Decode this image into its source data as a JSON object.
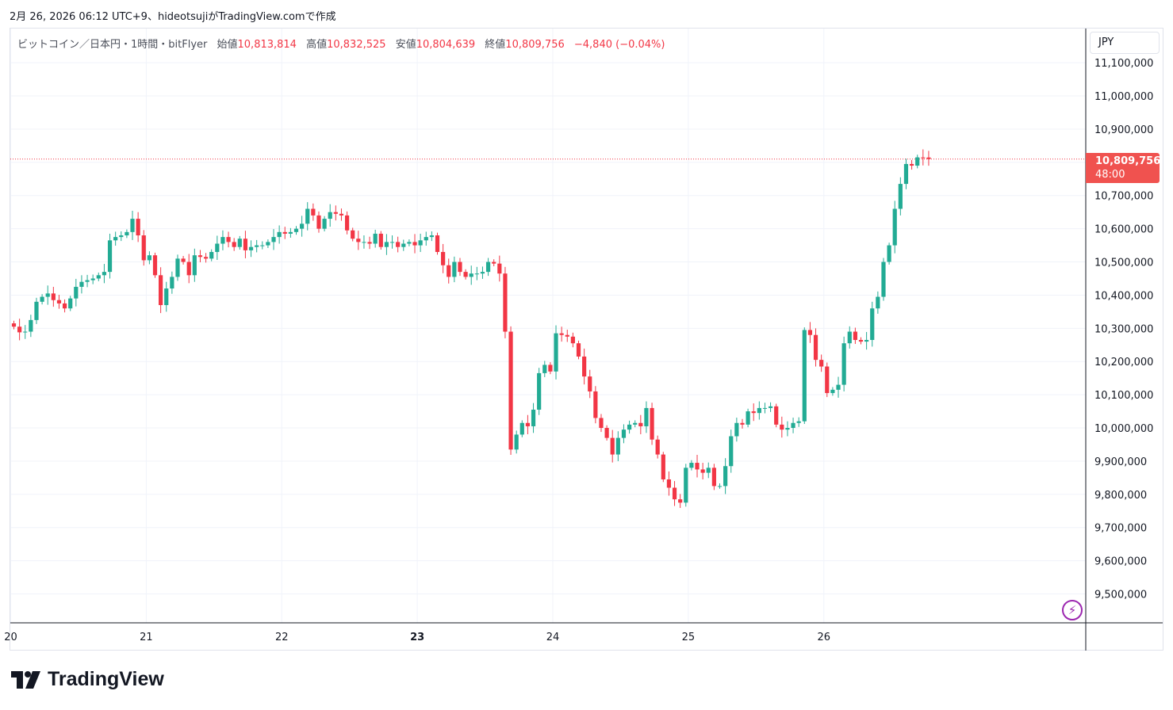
{
  "header": {
    "text": "2月 26, 2026 06:12 UTC+9、hideotsujiがTradingView.comで作成"
  },
  "legend": {
    "symbol": "ビットコイン／日本円・1時間・bitFlyer",
    "open_label": "始値",
    "open": "10,813,814",
    "high_label": "高値",
    "high": "10,832,525",
    "low_label": "安値",
    "low": "10,804,639",
    "close_label": "終値",
    "close": "10,809,756",
    "change": "−4,840 (−0.04%)"
  },
  "currency_button": "JPY",
  "last_price": {
    "value": "10,809,756",
    "countdown": "48:00",
    "raw": 10809756
  },
  "brand": {
    "name": "TradingView"
  },
  "colors": {
    "up": "#22ab94",
    "down": "#f23645",
    "grid": "#f0f3fa",
    "tag": "#f0524f"
  },
  "icons": {
    "logo": "tradingview-logo-icon",
    "bolt": "lightning-icon"
  },
  "chart_data": {
    "type": "candlestick",
    "interval": "1時間",
    "y_ticks": [
      9500000,
      9600000,
      9700000,
      9800000,
      9900000,
      10000000,
      10100000,
      10200000,
      10300000,
      10400000,
      10500000,
      10600000,
      10700000,
      10800000,
      10900000,
      11000000,
      11100000
    ],
    "y_tick_labels": [
      "9,500,000",
      "9,600,000",
      "9,700,000",
      "9,800,000",
      "9,900,000",
      "10,000,000",
      "10,100,000",
      "10,200,000",
      "10,300,000",
      "10,400,000",
      "10,500,000",
      "10,600,000",
      "10,700,000",
      "10,800,000",
      "10,900,000",
      "11,000,000",
      "11,100,000"
    ],
    "y_label_hidden": "10,800,000",
    "ylim": [
      9413000,
      11123000
    ],
    "x_ticks": [
      "20",
      "21",
      "22",
      "23",
      "24",
      "25",
      "26"
    ],
    "bold_x_tick": "23",
    "grid": true,
    "closes": [
      10305000,
      10288000,
      10290000,
      10325000,
      10380000,
      10395000,
      10405000,
      10385000,
      10375000,
      10360000,
      10390000,
      10425000,
      10440000,
      10445000,
      10450000,
      10460000,
      10470000,
      10565000,
      10575000,
      10580000,
      10590000,
      10630000,
      10580000,
      10505000,
      10520000,
      10460000,
      10370000,
      10420000,
      10455000,
      10510000,
      10500000,
      10460000,
      10520000,
      10515000,
      10510000,
      10530000,
      10555000,
      10575000,
      10560000,
      10545000,
      10570000,
      10535000,
      10545000,
      10550000,
      10550000,
      10560000,
      10575000,
      10590000,
      10585000,
      10590000,
      10600000,
      10615000,
      10660000,
      10640000,
      10600000,
      10630000,
      10650000,
      10645000,
      10640000,
      10595000,
      10570000,
      10560000,
      10560000,
      10555000,
      10585000,
      10545000,
      10560000,
      10560000,
      10545000,
      10555000,
      10560000,
      10550000,
      10565000,
      10575000,
      10580000,
      10530000,
      10490000,
      10455000,
      10500000,
      10470000,
      10455000,
      10465000,
      10465000,
      10470000,
      10500000,
      10495000,
      10465000,
      10290000,
      9935000,
      9980000,
      10015000,
      10005000,
      10055000,
      10165000,
      10190000,
      10170000,
      10285000,
      10280000,
      10275000,
      10255000,
      10215000,
      10155000,
      10110000,
      10030000,
      10000000,
      9970000,
      9920000,
      9970000,
      9995000,
      10010000,
      10015000,
      10005000,
      10060000,
      9965000,
      9920000,
      9845000,
      9820000,
      9785000,
      9775000,
      9880000,
      9895000,
      9875000,
      9865000,
      9880000,
      9825000,
      9825000,
      9885000,
      9975000,
      10015000,
      10010000,
      10050000,
      10045000,
      10060000,
      10060000,
      10065000,
      10010000,
      9995000,
      10000000,
      10015000,
      10020000,
      10295000,
      10280000,
      10205000,
      10185000,
      10105000,
      10115000,
      10130000,
      10255000,
      10290000,
      10265000,
      10260000,
      10265000,
      10360000,
      10395000,
      10500000,
      10550000,
      10660000,
      10735000,
      10795000,
      10790000,
      10815000,
      10814596,
      10809756
    ],
    "spacing": 7.12
  }
}
